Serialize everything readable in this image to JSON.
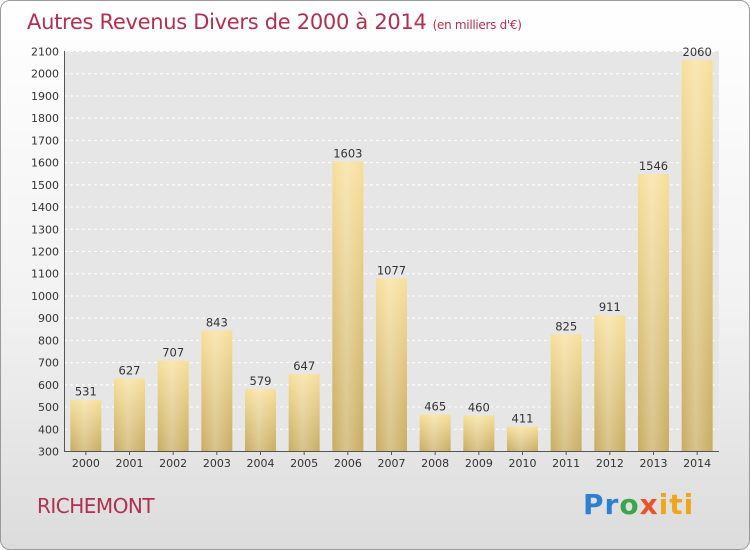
{
  "title": "Autres Revenus Divers de 2000 à 2014",
  "title_unit": "(en milliers d'€)",
  "place": "RICHEMONT",
  "logo": {
    "part1": "Pr",
    "part2": "o",
    "part3": "x",
    "part4": "iti"
  },
  "colors": {
    "title": "#b03050",
    "bar_top": "#f7df9a",
    "bar_bottom": "#c8ac60"
  },
  "chart_data": {
    "type": "bar",
    "categories": [
      "2000",
      "2001",
      "2002",
      "2003",
      "2004",
      "2005",
      "2006",
      "2007",
      "2008",
      "2009",
      "2010",
      "2011",
      "2012",
      "2013",
      "2014"
    ],
    "values": [
      531,
      627,
      707,
      843,
      579,
      647,
      1603,
      1077,
      465,
      460,
      411,
      825,
      911,
      1546,
      2060
    ],
    "ylim": [
      300,
      2100
    ],
    "yticks": [
      300,
      400,
      500,
      600,
      700,
      800,
      900,
      1000,
      1100,
      1200,
      1300,
      1400,
      1500,
      1600,
      1700,
      1800,
      1900,
      2000,
      2100
    ],
    "grid": true,
    "data_labels": true
  }
}
